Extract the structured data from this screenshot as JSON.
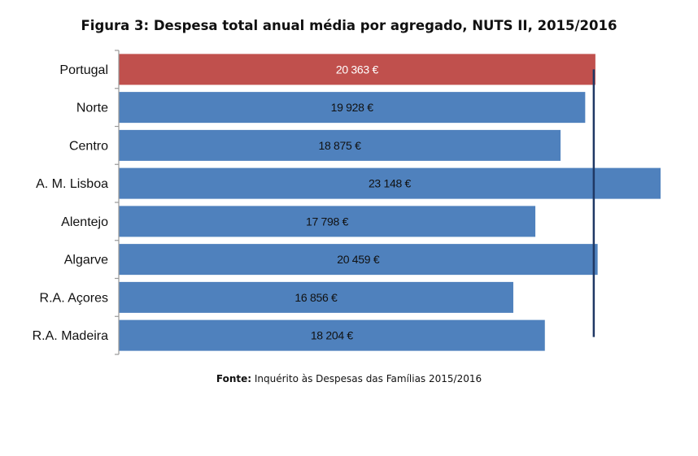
{
  "chart_data": {
    "type": "bar",
    "orientation": "horizontal",
    "title": "Figura 3: Despesa total anual média por agregado, NUTS II, 2015/2016",
    "categories": [
      "Portugal",
      "Norte",
      "Centro",
      "A. M. Lisboa",
      "Alentejo",
      "Algarve",
      "R.A. Açores",
      "R.A. Madeira"
    ],
    "values": [
      20363,
      19928,
      18875,
      23148,
      17798,
      20459,
      16856,
      18204
    ],
    "data_labels": [
      "20 363 €",
      "19 928 €",
      "18 875 €",
      "23 148 €",
      "17 798 €",
      "20 459 €",
      "16 856 €",
      "18 204 €"
    ],
    "reference_line": 20363,
    "xlim": [
      0,
      23148
    ],
    "xlabel": "",
    "ylabel": "",
    "grid": false,
    "legend": "none"
  },
  "colors": {
    "highlight_bar": "#C0504D",
    "bar": "#4F81BD",
    "reference_line": "#1F3864",
    "axis": "#999999",
    "highlight_label": "#ffffff",
    "label": "#111111"
  },
  "source": {
    "prefix": "Fonte:",
    "text": " Inquérito às Despesas das Famílias 2015/2016"
  }
}
